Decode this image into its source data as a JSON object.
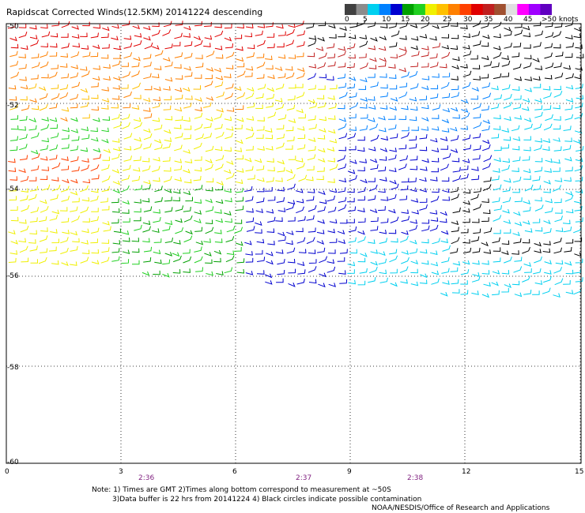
{
  "title": "Rapidscat Corrected Winds(12.5KM) 20141224 descending",
  "legend": {
    "labels": [
      "0",
      "5",
      "10",
      "15",
      "20",
      "25",
      "30",
      "35",
      "40",
      "45",
      ">50 knots"
    ],
    "colors": [
      "#404040",
      "#8c8c8c",
      "#00d0f0",
      "#0080ff",
      "#0000d0",
      "#00a000",
      "#20d020",
      "#f0f000",
      "#ffc000",
      "#ff8000",
      "#ff4000",
      "#e00000",
      "#c02020",
      "#a05030",
      "#e0e0e0",
      "#ff00ff",
      "#a000ff",
      "#6000c0"
    ]
  },
  "y_ticks": [
    "-50",
    "-52",
    "-54",
    "-56",
    "-58",
    "-60"
  ],
  "x_ticks": [
    "0",
    "3",
    "6",
    "9",
    "12",
    "15"
  ],
  "times": [
    "2:36",
    "2:37",
    "2:38"
  ],
  "notes": {
    "line1": "Note: 1) Times are GMT 2)Times along bottom correspond to measurement at ~50S",
    "line2": "3)Data buffer is 22 hrs from 20141224 4) Black circles indicate possible contamination",
    "credit": "NOAA/NESDIS/Office of Research and Applications"
  }
}
